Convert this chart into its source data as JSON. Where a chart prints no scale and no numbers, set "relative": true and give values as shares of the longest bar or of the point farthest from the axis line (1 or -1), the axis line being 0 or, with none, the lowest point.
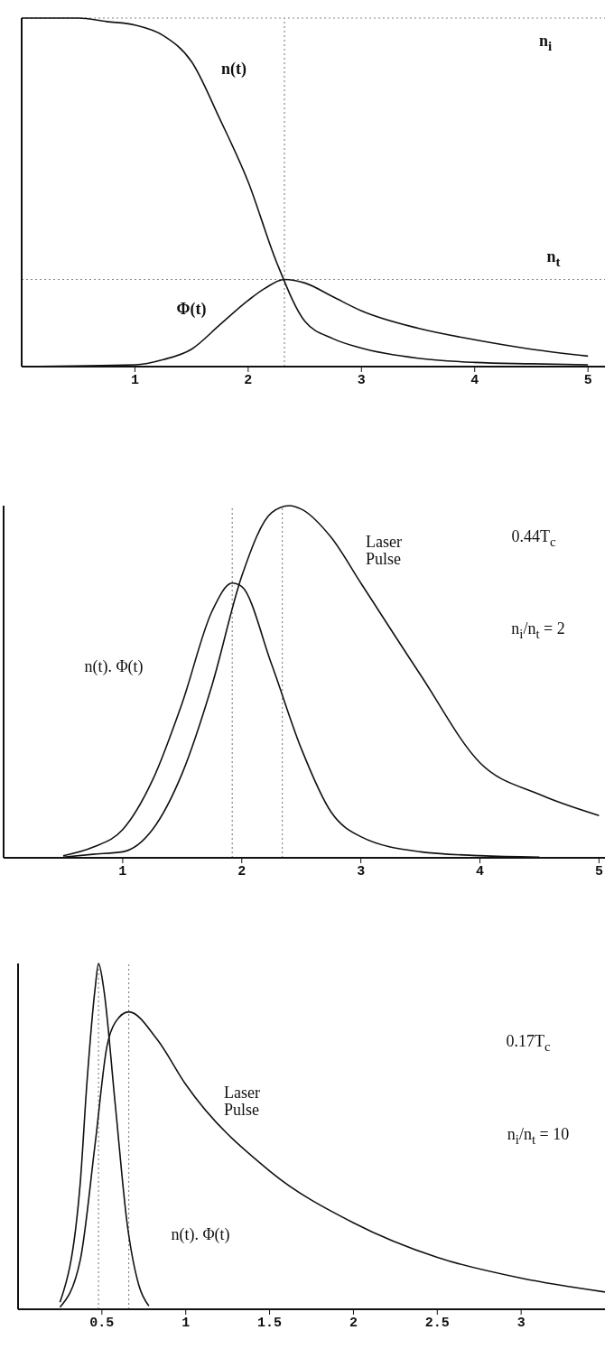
{
  "chart_data": [
    {
      "type": "line",
      "relative": true,
      "marker": "none",
      "tick_labels": "x",
      "xlim": [
        0,
        5.15
      ],
      "xticks": [
        1,
        2,
        3,
        4,
        5
      ],
      "series": [
        {
          "name": "n(t)",
          "color": "#111111",
          "x": [
            0,
            0.5,
            0.75,
            1,
            1.25,
            1.5,
            1.75,
            2,
            2.25,
            2.5,
            2.75,
            3,
            3.5,
            4,
            4.5,
            5
          ],
          "values": [
            1,
            1,
            0.99,
            0.98,
            0.95,
            0.875,
            0.71,
            0.53,
            0.3,
            0.13,
            0.08,
            0.053,
            0.024,
            0.012,
            0.008,
            0.005
          ]
        },
        {
          "name": "Φ(t)",
          "color": "#111111",
          "x": [
            0,
            1,
            1.25,
            1.5,
            1.75,
            2,
            2.15,
            2.32,
            2.5,
            2.75,
            3,
            3.5,
            4,
            4.5,
            5
          ],
          "values": [
            0,
            0.005,
            0.02,
            0.05,
            0.12,
            0.19,
            0.225,
            0.25,
            0.24,
            0.2,
            0.16,
            0.11,
            0.077,
            0.05,
            0.03
          ]
        }
      ],
      "ref_lines": [
        {
          "axis": "y",
          "value": 1,
          "label": "n$_{i}$",
          "line_style": "dotted",
          "color": "#888888"
        },
        {
          "axis": "y",
          "value": 0.25,
          "label": "n$_{t}$",
          "line_style": "dotted",
          "color": "#888888"
        },
        {
          "axis": "x",
          "value": 2.32,
          "line_style": "dotted",
          "color": "#888888"
        }
      ]
    },
    {
      "type": "line",
      "relative": true,
      "marker": "none",
      "tick_labels": "x",
      "xlim": [
        0,
        5.05
      ],
      "xticks": [
        1,
        2,
        3,
        4,
        5
      ],
      "series": [
        {
          "name": "Laser Pulse",
          "color": "#111111",
          "x": [
            0.5,
            0.75,
            1,
            1.25,
            1.5,
            1.75,
            2,
            2.25,
            2.4,
            2.5,
            2.75,
            3,
            3.5,
            4,
            4.5,
            5
          ],
          "values": [
            0.002,
            0.01,
            0.017,
            0.08,
            0.24,
            0.49,
            0.8,
            0.98,
            1,
            0.99,
            0.91,
            0.78,
            0.52,
            0.27,
            0.18,
            0.12
          ]
        },
        {
          "name": "n(t). Φ(t)",
          "color": "#111111",
          "x": [
            0.5,
            0.75,
            1,
            1.25,
            1.5,
            1.75,
            1.92,
            2,
            2.25,
            2.5,
            2.75,
            3,
            3.5,
            4,
            4.5
          ],
          "values": [
            0.006,
            0.03,
            0.08,
            0.22,
            0.44,
            0.7,
            0.78,
            0.77,
            0.55,
            0.31,
            0.13,
            0.06,
            0.017,
            0.006,
            0.002
          ]
        }
      ],
      "ref_lines": [
        {
          "axis": "x",
          "value": 1.92,
          "line_style": "dotted",
          "color": "#888888"
        },
        {
          "axis": "x",
          "value": 2.34,
          "line_style": "dotted",
          "color": "#888888"
        }
      ],
      "annotations": [
        "0.44T$_{c}$",
        "n$_{i}$/n$_{t}$ = 2"
      ]
    },
    {
      "type": "line",
      "relative": true,
      "marker": "none",
      "tick_labels": "x",
      "xlim": [
        0,
        3.5
      ],
      "xticks": [
        0.5,
        1,
        1.5,
        2,
        2.5,
        3
      ],
      "series": [
        {
          "name": "Laser Pulse",
          "color": "#111111",
          "x": [
            0.25,
            0.37,
            0.46,
            0.53,
            0.58,
            0.66,
            0.83,
            1,
            1.5,
            2,
            2.5,
            3,
            3.5
          ],
          "values": [
            0.006,
            0.14,
            0.48,
            0.76,
            0.83,
            0.86,
            0.78,
            0.65,
            0.4,
            0.25,
            0.15,
            0.09,
            0.05
          ]
        },
        {
          "name": "n(t). Φ(t)",
          "color": "#111111",
          "x": [
            0.25,
            0.37,
            0.41,
            0.46,
            0.48,
            0.51,
            0.58,
            0.65,
            0.72,
            0.78
          ],
          "values": [
            0.02,
            0.36,
            0.65,
            0.93,
            1,
            0.93,
            0.59,
            0.25,
            0.07,
            0.01
          ]
        }
      ],
      "ref_lines": [
        {
          "axis": "x",
          "value": 0.48,
          "line_style": "dotted",
          "color": "#888888"
        },
        {
          "axis": "x",
          "value": 0.66,
          "line_style": "dotted",
          "color": "#888888"
        }
      ],
      "annotations": [
        "0.17T$_{c}$",
        "n$_{i}$/n$_{t}$ = 10"
      ]
    }
  ]
}
